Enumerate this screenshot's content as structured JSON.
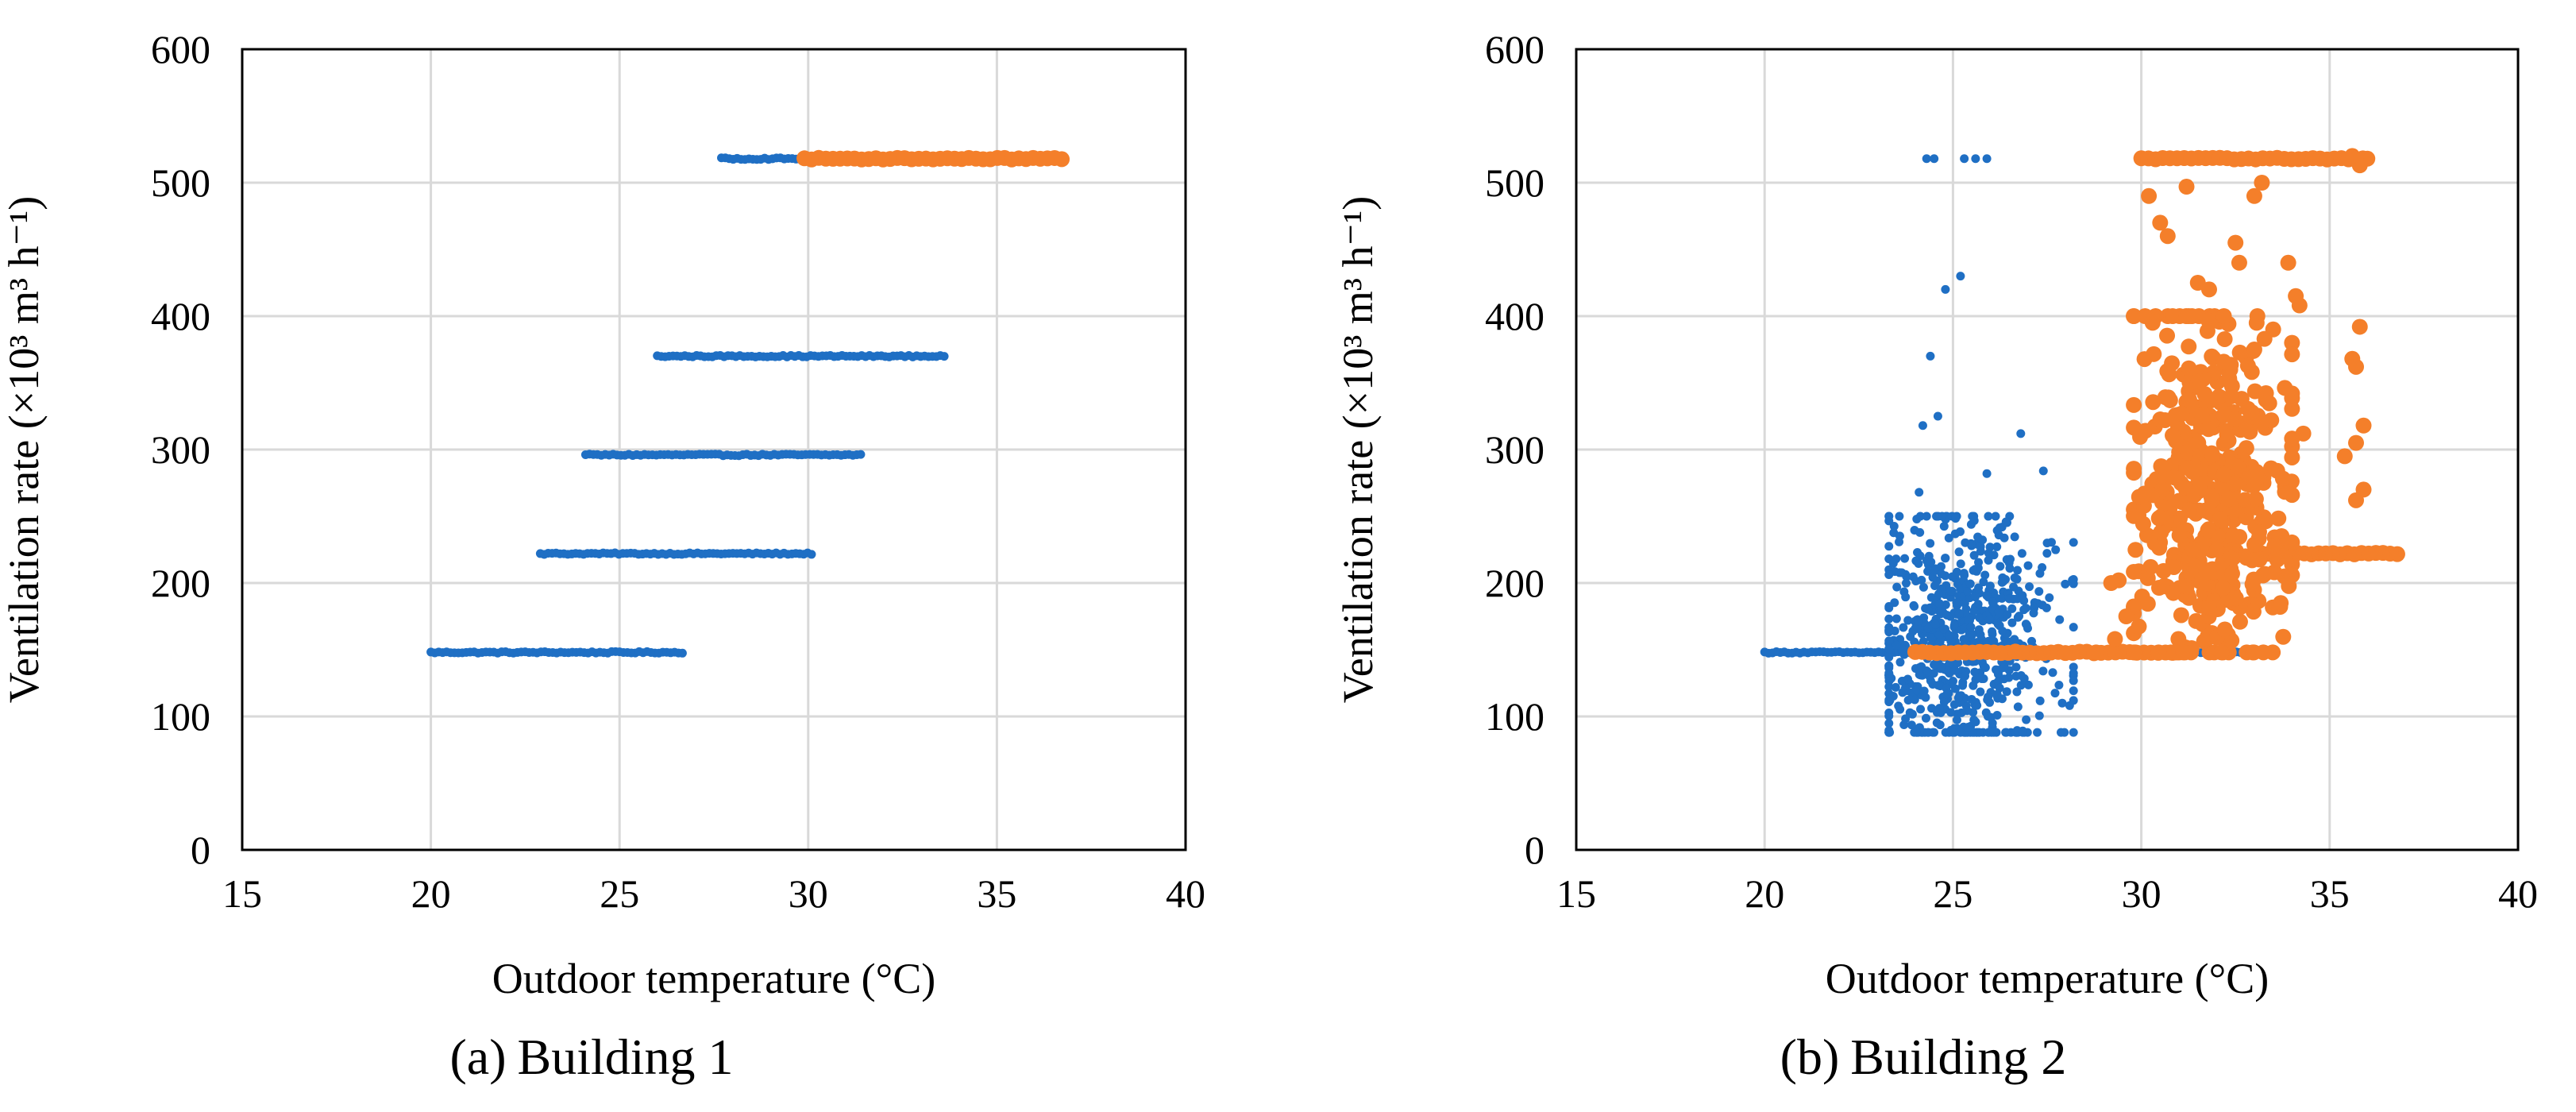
{
  "colors": {
    "series_blue": "#1f6fc4",
    "series_orange": "#f47f2a",
    "grid": "#d9d9d9"
  },
  "chart_data": [
    {
      "type": "scatter",
      "caption": {
        "tag": "(a)",
        "label": "Building 1"
      },
      "xlabel": "Outdoor temperature (°C)",
      "ylabel": "Ventilation rate (×10³ m³ h⁻¹)",
      "xlim": [
        15,
        40
      ],
      "ylim": [
        0,
        600
      ],
      "xticks": [
        "15",
        "20",
        "25",
        "30",
        "35",
        "40"
      ],
      "yticks": [
        "0",
        "100",
        "200",
        "300",
        "400",
        "500",
        "600"
      ],
      "grid": true,
      "legend": "none",
      "series": [
        {
          "name": "blue",
          "color": "#1f6fc4",
          "marker": "small",
          "bands": [
            {
              "y": 148,
              "x_from": 20.0,
              "x_to": 26.7
            },
            {
              "y": 222,
              "x_from": 22.9,
              "x_to": 30.1
            },
            {
              "y": 296,
              "x_from": 24.1,
              "x_to": 31.4
            },
            {
              "y": 370,
              "x_from": 26.0,
              "x_to": 33.7
            },
            {
              "y": 518,
              "x_from": 27.7,
              "x_to": 31.0
            }
          ],
          "points": []
        },
        {
          "name": "orange",
          "color": "#f47f2a",
          "marker": "large",
          "bands": [
            {
              "y": 518,
              "x_from": 29.9,
              "x_to": 36.8
            }
          ],
          "points": []
        }
      ]
    },
    {
      "type": "scatter",
      "caption": {
        "tag": "(b)",
        "label": "Building 2"
      },
      "xlabel": "Outdoor temperature (°C)",
      "ylabel": "Ventilation rate (×10³ m³ h⁻¹)",
      "xlim": [
        15,
        40
      ],
      "ylim": [
        0,
        600
      ],
      "xticks": [
        "15",
        "20",
        "25",
        "30",
        "35",
        "40"
      ],
      "yticks": [
        "0",
        "100",
        "200",
        "300",
        "400",
        "500",
        "600"
      ],
      "grid": true,
      "legend": "none",
      "series": [
        {
          "name": "blue",
          "color": "#1f6fc4",
          "marker": "small",
          "bands": [
            {
              "y": 148,
              "x_from": 20.0,
              "x_to": 33.0
            }
          ],
          "cloud": {
            "x_center": 25.2,
            "x_spread": 1.2,
            "y_center": 160,
            "y_spread": 45,
            "count": 700,
            "x_min": 23.3,
            "x_max": 28.2,
            "y_min": 88,
            "y_max": 250
          },
          "points": [
            [
              24.3,
              518
            ],
            [
              24.5,
              518
            ],
            [
              25.3,
              518
            ],
            [
              25.6,
              518
            ],
            [
              25.9,
              518
            ],
            [
              25.2,
              430
            ],
            [
              24.8,
              420
            ],
            [
              24.4,
              370
            ],
            [
              24.6,
              325
            ],
            [
              24.2,
              318
            ],
            [
              26.8,
              312
            ],
            [
              27.4,
              284
            ],
            [
              25.9,
              282
            ],
            [
              24.1,
              268
            ],
            [
              27.5,
              230
            ],
            [
              25.0,
              88
            ],
            [
              25.4,
              92
            ],
            [
              27.9,
              110
            ],
            [
              28.2,
              112
            ],
            [
              23.8,
              128
            ]
          ]
        },
        {
          "name": "orange",
          "color": "#f47f2a",
          "marker": "large",
          "bands": [
            {
              "y": 148,
              "x_from": 24.0,
              "x_to": 31.0
            },
            {
              "y": 518,
              "x_from": 30.0,
              "x_to": 36.0
            },
            {
              "y": 222,
              "x_from": 33.0,
              "x_to": 36.8
            }
          ],
          "cloud": {
            "x_center": 31.8,
            "x_spread": 1.1,
            "y_center": 260,
            "y_spread": 70,
            "count": 450,
            "x_min": 29.8,
            "x_max": 34.0,
            "y_min": 148,
            "y_max": 400
          },
          "points": [
            [
              30.1,
              400
            ],
            [
              30.3,
              395
            ],
            [
              30.2,
              490
            ],
            [
              30.5,
              470
            ],
            [
              30.7,
              460
            ],
            [
              31.2,
              497
            ],
            [
              32.5,
              455
            ],
            [
              32.6,
              440
            ],
            [
              33.2,
              500
            ],
            [
              33.0,
              490
            ],
            [
              33.9,
              440
            ],
            [
              34.1,
              415
            ],
            [
              34.2,
              408
            ],
            [
              31.8,
              420
            ],
            [
              31.5,
              425
            ],
            [
              33.5,
              390
            ],
            [
              33.0,
              375
            ],
            [
              35.6,
              368
            ],
            [
              35.7,
              362
            ],
            [
              35.8,
              392
            ],
            [
              35.9,
              318
            ],
            [
              35.7,
              305
            ],
            [
              35.9,
              270
            ],
            [
              35.7,
              262
            ],
            [
              35.4,
              295
            ],
            [
              34.3,
              312
            ],
            [
              33.8,
              220
            ],
            [
              33.8,
              205
            ],
            [
              33.7,
              185
            ],
            [
              29.4,
              202
            ],
            [
              29.2,
              200
            ],
            [
              29.6,
              175
            ],
            [
              29.3,
              158
            ],
            [
              28.8,
              148
            ],
            [
              36.0,
              518
            ],
            [
              35.8,
              513
            ],
            [
              35.6,
              520
            ]
          ]
        }
      ]
    }
  ]
}
